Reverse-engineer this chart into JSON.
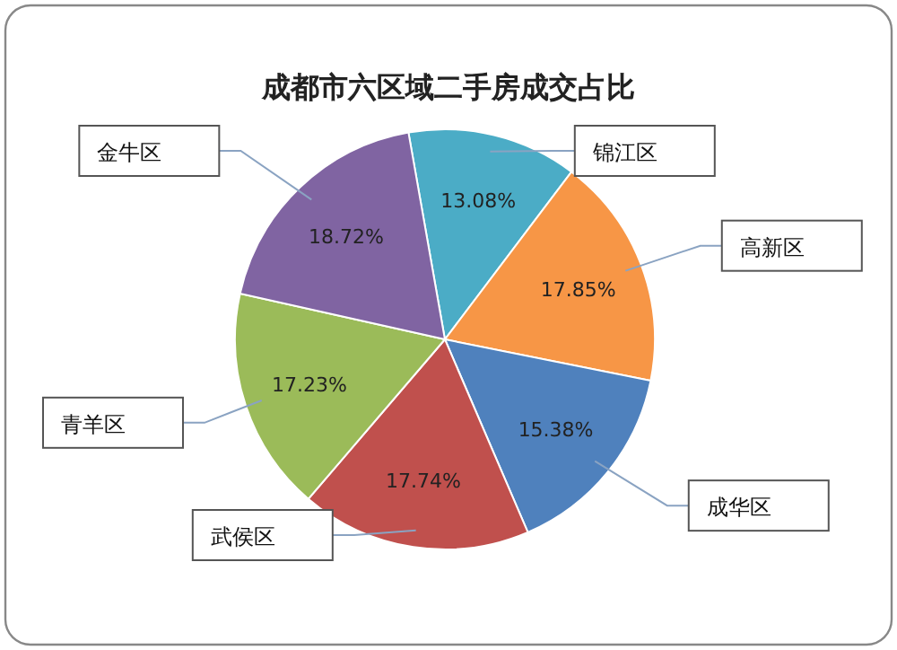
{
  "chart_data": {
    "type": "pie",
    "title": "成都市六区域二手房成交占比",
    "categories": [
      "锦江区",
      "高新区",
      "成华区",
      "武侯区",
      "青羊区",
      "金牛区"
    ],
    "values": [
      13.08,
      17.85,
      15.38,
      17.74,
      17.23,
      18.72
    ],
    "colors": [
      "#4bacc6",
      "#f79646",
      "#4f81bd",
      "#c0504d",
      "#9bbb59",
      "#8064a2"
    ],
    "value_labels": [
      "13.08%",
      "17.85%",
      "15.38%",
      "17.74%",
      "17.23%",
      "18.72%"
    ]
  }
}
